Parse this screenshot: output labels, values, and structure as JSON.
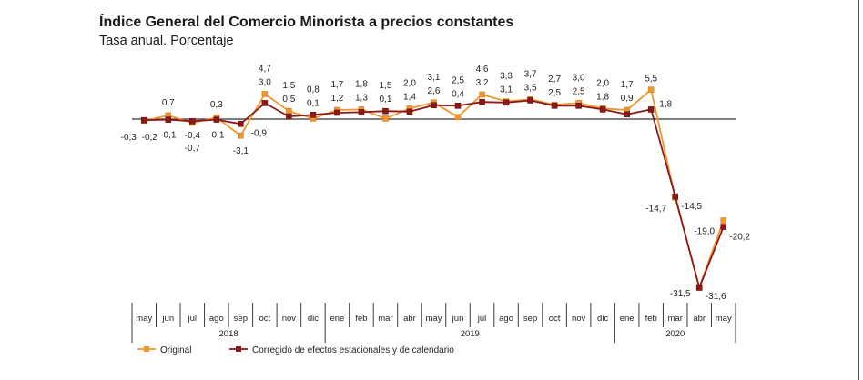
{
  "chart_data": {
    "type": "line",
    "title": "Índice General del Comercio Minorista a precios constantes",
    "subtitle": "Tasa anual. Porcentaje",
    "x_groups": [
      {
        "year": "2018",
        "months": [
          "may",
          "jun",
          "jul",
          "ago",
          "sep",
          "oct",
          "nov",
          "dic"
        ]
      },
      {
        "year": "2019",
        "months": [
          "ene",
          "feb",
          "mar",
          "abr",
          "may",
          "jun",
          "jul",
          "ago",
          "sep",
          "oct",
          "nov",
          "dic"
        ]
      },
      {
        "year": "2020",
        "months": [
          "ene",
          "feb",
          "mar",
          "abr",
          "may"
        ]
      }
    ],
    "series": [
      {
        "name": "Original",
        "color": "#F29630",
        "values": [
          -0.3,
          0.7,
          -0.7,
          0.3,
          -3.1,
          4.7,
          1.5,
          0.1,
          1.7,
          1.8,
          0.1,
          2.0,
          3.1,
          0.4,
          4.6,
          3.3,
          3.7,
          2.7,
          3.0,
          2.0,
          1.7,
          5.5,
          -14.7,
          -31.5,
          -19.0
        ],
        "labels": [
          "-0,3",
          "0,7",
          "-0,7",
          "0,3",
          "-3,1",
          "4,7",
          "1,5",
          "0,1",
          "1,7",
          "1,8",
          "0,1",
          "2,0",
          "3,1",
          "0,4",
          "4,6",
          "3,3",
          "3,7",
          "2,7",
          "3,0",
          "2,0",
          "1,7",
          "5,5",
          "-14,7",
          "-31,5",
          "-19,0"
        ]
      },
      {
        "name": "Corregido de efectos estacionales y de calendario",
        "color": "#8B1A16",
        "values": [
          -0.2,
          -0.1,
          -0.4,
          -0.1,
          -0.9,
          3.0,
          0.5,
          0.8,
          1.2,
          1.3,
          1.5,
          1.4,
          2.6,
          2.5,
          3.2,
          3.1,
          3.5,
          2.5,
          2.5,
          1.8,
          0.9,
          1.8,
          -14.5,
          -31.6,
          -20.2
        ],
        "labels": [
          "-0,2",
          "-0,1",
          "-0,4",
          "-0,1",
          "-0,9",
          "3,0",
          "0,5",
          "0,8",
          "1,2",
          "1,3",
          "1,5",
          "1,4",
          "2,6",
          "2,5",
          "3,2",
          "3,1",
          "3,5",
          "2,5",
          "2,5",
          "1,8",
          "0,9",
          "1,8",
          "-14,5",
          "-31,6",
          "-20,2"
        ]
      }
    ],
    "legend": "bottom-left",
    "grid": false
  }
}
